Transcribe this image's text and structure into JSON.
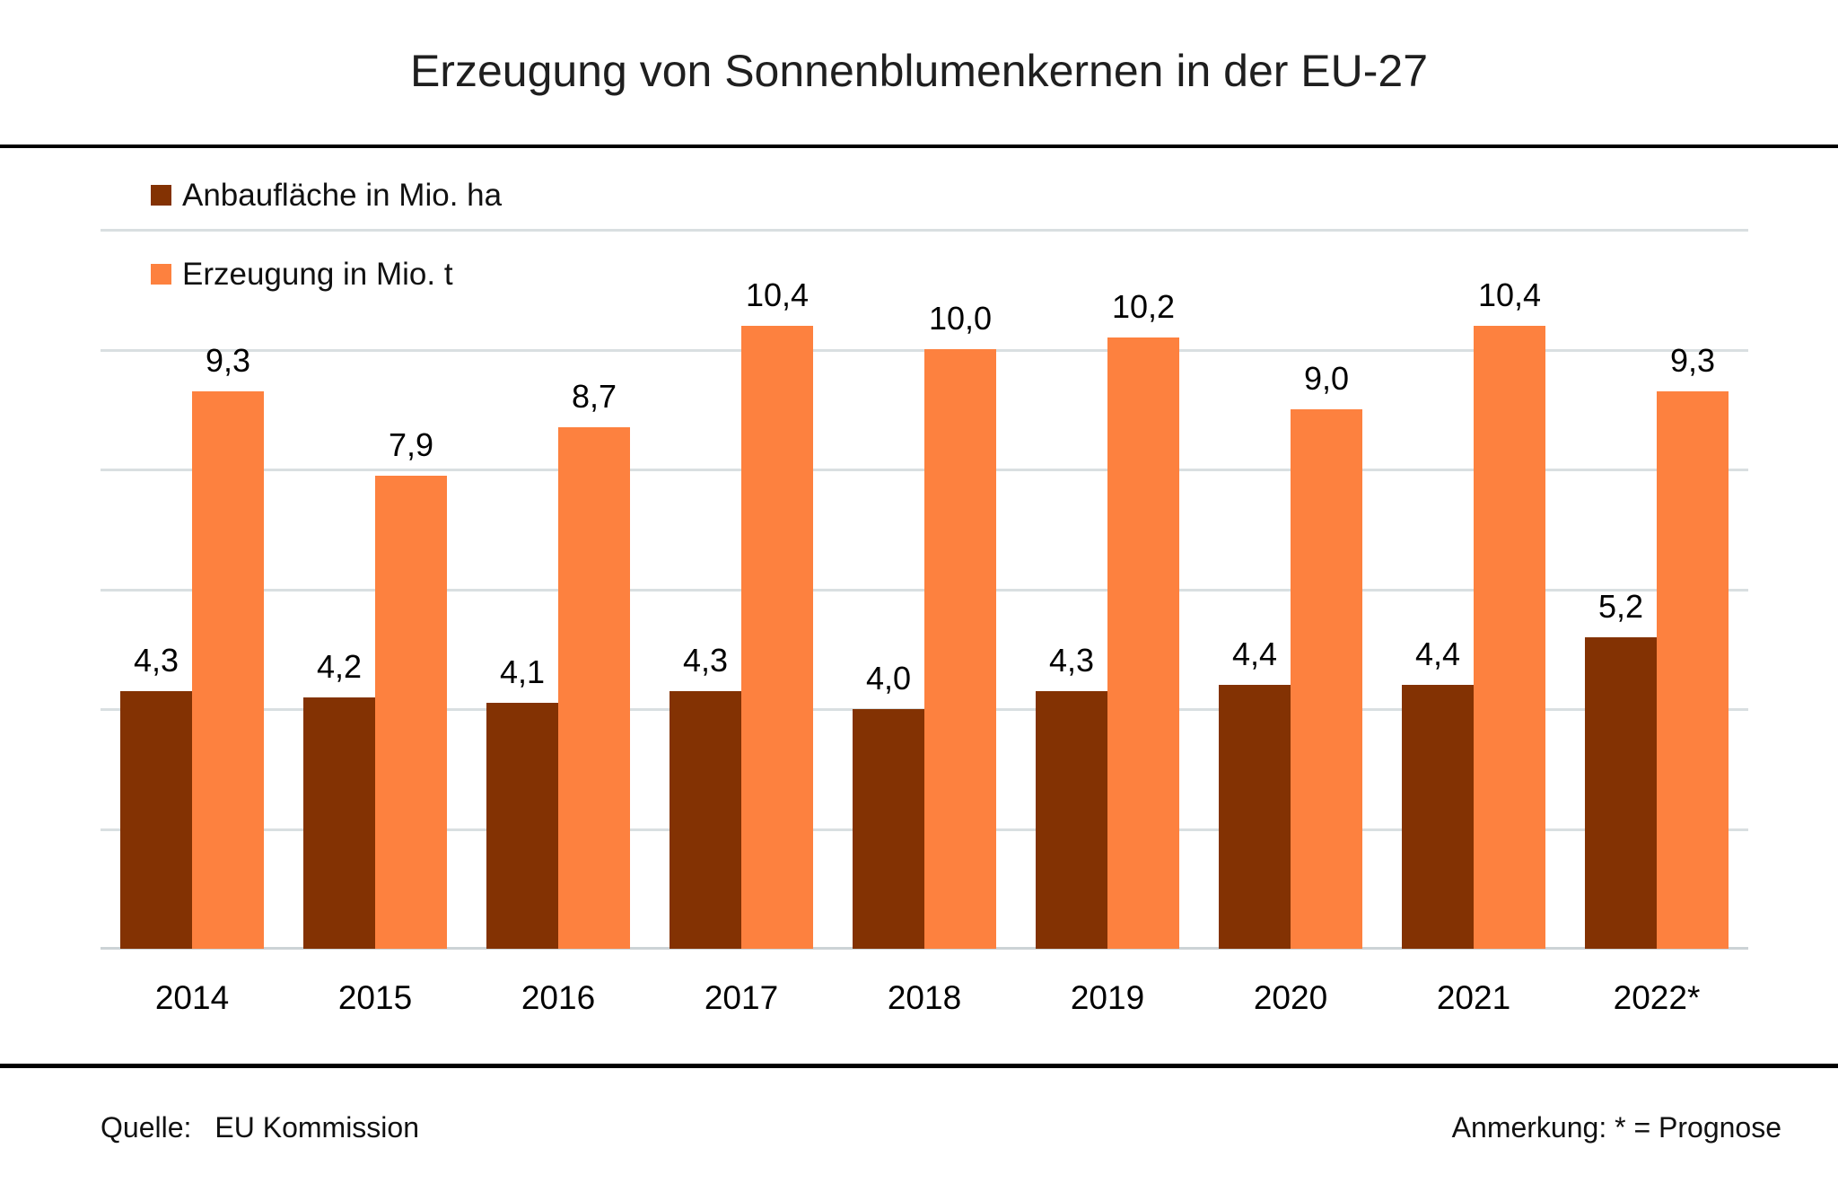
{
  "title": "Erzeugung von Sonnenblumenkernen in der EU-27",
  "legend": [
    {
      "label": "Anbaufläche in Mio. ha",
      "color": "#833203"
    },
    {
      "label": "Erzeugung in Mio. t",
      "color": "#fd813f"
    }
  ],
  "footer": {
    "source_label": "Quelle:",
    "source_value": "EU Kommission",
    "note": "Anmerkung: * = Prognose"
  },
  "chart_data": {
    "type": "bar",
    "title": "Erzeugung von Sonnenblumenkernen in der EU-27",
    "categories": [
      "2014",
      "2015",
      "2016",
      "2017",
      "2018",
      "2019",
      "2020",
      "2021",
      "2022*"
    ],
    "series": [
      {
        "name": "Anbaufläche in Mio. ha",
        "color": "#833203",
        "values": [
          4.3,
          4.2,
          4.1,
          4.3,
          4.0,
          4.3,
          4.4,
          4.4,
          5.2
        ],
        "labels": [
          "4,3",
          "4,2",
          "4,1",
          "4,3",
          "4,0",
          "4,3",
          "4,4",
          "4,4",
          "5,2"
        ]
      },
      {
        "name": "Erzeugung in Mio. t",
        "color": "#fd813f",
        "values": [
          9.3,
          7.9,
          8.7,
          10.4,
          10.0,
          10.2,
          9.0,
          10.4,
          9.3
        ],
        "labels": [
          "9,3",
          "7,9",
          "8,7",
          "10,4",
          "10,0",
          "10,2",
          "9,0",
          "10,4",
          "9,3"
        ]
      }
    ],
    "xlabel": "",
    "ylabel": "",
    "ylim": [
      0,
      12
    ],
    "gridline_values": [
      0,
      2,
      4,
      6,
      8,
      10,
      12
    ],
    "grid": true,
    "y_axis_tick_labels_visible": false,
    "value_labels": true,
    "legend_position": "top-left",
    "decimal_separator": ","
  }
}
